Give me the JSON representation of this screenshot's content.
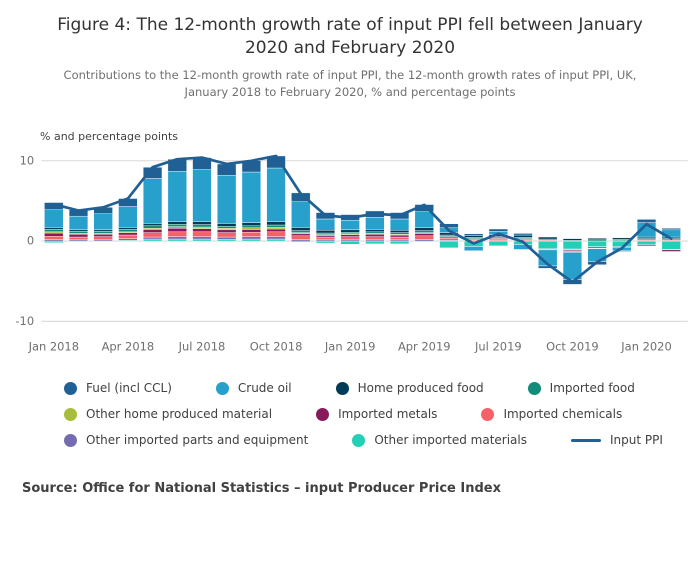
{
  "figure": {
    "title": "Figure 4: The 12-month growth rate of input PPI fell between January 2020 and February 2020",
    "subtitle": "Contributions to the 12-month growth rate of input PPI, the 12-month growth rates of input PPI, UK, January 2018 to February 2020, % and percentage points",
    "source": "Source: Office for National Statistics – input Producer Price Index"
  },
  "chart_data": {
    "type": "bar",
    "stacked": true,
    "unit_label": "% and percentage points",
    "ylim": [
      -10,
      10
    ],
    "y_ticks": [
      10,
      0,
      -10
    ],
    "grid": true,
    "legend_position": "bottom",
    "x": [
      "Jan 2018",
      "Feb 2018",
      "Mar 2018",
      "Apr 2018",
      "May 2018",
      "Jun 2018",
      "Jul 2018",
      "Aug 2018",
      "Sep 2018",
      "Oct 2018",
      "Nov 2018",
      "Dec 2018",
      "Jan 2019",
      "Feb 2019",
      "Mar 2019",
      "Apr 2019",
      "May 2019",
      "Jun 2019",
      "Jul 2019",
      "Aug 2019",
      "Sep 2019",
      "Oct 2019",
      "Nov 2019",
      "Dec 2019",
      "Jan 2020",
      "Feb 2020"
    ],
    "x_tick_indices": [
      0,
      3,
      6,
      9,
      12,
      15,
      18,
      21,
      24
    ],
    "series": [
      {
        "id": "fuel",
        "name": "Fuel (incl CCL)",
        "color": "#206095",
        "values": [
          0.9,
          0.8,
          0.8,
          1.0,
          1.4,
          1.5,
          1.5,
          1.4,
          1.4,
          1.5,
          1.1,
          0.8,
          0.7,
          0.8,
          0.8,
          0.9,
          0.5,
          0.2,
          0.3,
          0.2,
          -0.3,
          -0.6,
          -0.4,
          -0.1,
          0.4,
          0.2
        ]
      },
      {
        "id": "crude-oil",
        "name": "Crude oil",
        "color": "#27A0CC",
        "values": [
          2.2,
          1.7,
          2.0,
          2.6,
          5.6,
          6.3,
          6.5,
          6.0,
          6.3,
          6.7,
          3.2,
          1.4,
          1.2,
          1.5,
          1.4,
          2.0,
          0.6,
          -0.5,
          0.4,
          -0.6,
          -2.0,
          -3.4,
          -1.6,
          -0.4,
          1.8,
          0.9
        ]
      },
      {
        "id": "home-produced-food",
        "name": "Home produced food",
        "color": "#003C57",
        "values": [
          0.25,
          0.2,
          0.2,
          0.25,
          0.3,
          0.3,
          0.35,
          0.35,
          0.4,
          0.4,
          0.4,
          0.35,
          0.3,
          0.3,
          0.3,
          0.35,
          0.3,
          0.25,
          0.25,
          0.3,
          0.25,
          0.2,
          0.2,
          0.2,
          0.2,
          0.2
        ]
      },
      {
        "id": "imported-food",
        "name": "Imported food",
        "color": "#118C7B",
        "values": [
          0.3,
          0.25,
          0.25,
          0.3,
          0.3,
          0.3,
          0.3,
          0.25,
          0.25,
          0.3,
          0.25,
          0.2,
          0.2,
          0.2,
          0.2,
          0.25,
          0.2,
          0.15,
          0.15,
          0.15,
          0.15,
          0.1,
          0.15,
          0.15,
          0.15,
          0.15
        ]
      },
      {
        "id": "other-home-produced-material",
        "name": "Other home produced material",
        "color": "#A8BD3A",
        "values": [
          0.15,
          0.1,
          0.1,
          0.1,
          0.15,
          0.2,
          0.2,
          0.2,
          0.2,
          0.2,
          0.15,
          0.1,
          0.1,
          0.1,
          0.1,
          0.1,
          0.05,
          0.0,
          0.05,
          0.0,
          -0.05,
          -0.1,
          -0.05,
          0.0,
          0.05,
          0.05
        ]
      },
      {
        "id": "imported-metals",
        "name": "Imported metals",
        "color": "#871A5B",
        "values": [
          0.4,
          0.35,
          0.3,
          0.3,
          0.4,
          0.45,
          0.4,
          0.35,
          0.35,
          0.35,
          0.25,
          0.2,
          0.25,
          0.3,
          0.25,
          0.3,
          0.15,
          0.1,
          0.1,
          0.05,
          -0.1,
          -0.15,
          -0.15,
          -0.1,
          -0.15,
          -0.2
        ]
      },
      {
        "id": "imported-chemicals",
        "name": "Imported chemicals",
        "color": "#F66068",
        "values": [
          0.4,
          0.35,
          0.4,
          0.45,
          0.55,
          0.6,
          0.6,
          0.55,
          0.55,
          0.6,
          0.45,
          0.35,
          0.4,
          0.4,
          0.35,
          0.45,
          0.25,
          0.15,
          0.2,
          0.2,
          0.1,
          -0.1,
          -0.05,
          0.05,
          0.1,
          0.1
        ]
      },
      {
        "id": "other-imported-parts-and-equipment",
        "name": "Other imported parts and equipment",
        "color": "#746CB1",
        "values": [
          0.2,
          0.15,
          0.15,
          0.2,
          0.25,
          0.3,
          0.3,
          0.3,
          0.3,
          0.3,
          0.2,
          0.15,
          0.15,
          0.15,
          0.15,
          0.2,
          0.1,
          0.05,
          0.05,
          0.05,
          0.0,
          -0.05,
          0.0,
          0.0,
          0.0,
          -0.05
        ]
      },
      {
        "id": "other-imported-materials",
        "name": "Other imported materials",
        "color": "#22D0B6",
        "values": [
          -0.2,
          -0.1,
          0.0,
          0.1,
          0.25,
          0.25,
          0.25,
          0.2,
          0.25,
          0.25,
          -0.15,
          -0.25,
          -0.4,
          -0.35,
          -0.35,
          -0.1,
          -0.85,
          -0.7,
          -0.6,
          -0.45,
          -0.95,
          -1.0,
          -0.7,
          -0.7,
          -0.45,
          -1.05
        ]
      }
    ],
    "line_series": {
      "id": "input-ppi",
      "name": "Input PPI",
      "color": "#206095",
      "values": [
        4.6,
        3.8,
        4.2,
        5.3,
        9.2,
        10.2,
        10.4,
        9.6,
        10.0,
        10.6,
        5.9,
        3.2,
        2.9,
        3.4,
        3.2,
        4.5,
        1.3,
        -0.3,
        0.9,
        -0.1,
        -2.9,
        -5.1,
        -2.6,
        -0.9,
        2.1,
        0.3
      ]
    },
    "legend_rows": [
      [
        0,
        1,
        2,
        3
      ],
      [
        4,
        5,
        6
      ],
      [
        7,
        8,
        9
      ]
    ]
  },
  "style": {
    "grid_color": "#d9d9d9",
    "axis_text_color": "#707071"
  }
}
